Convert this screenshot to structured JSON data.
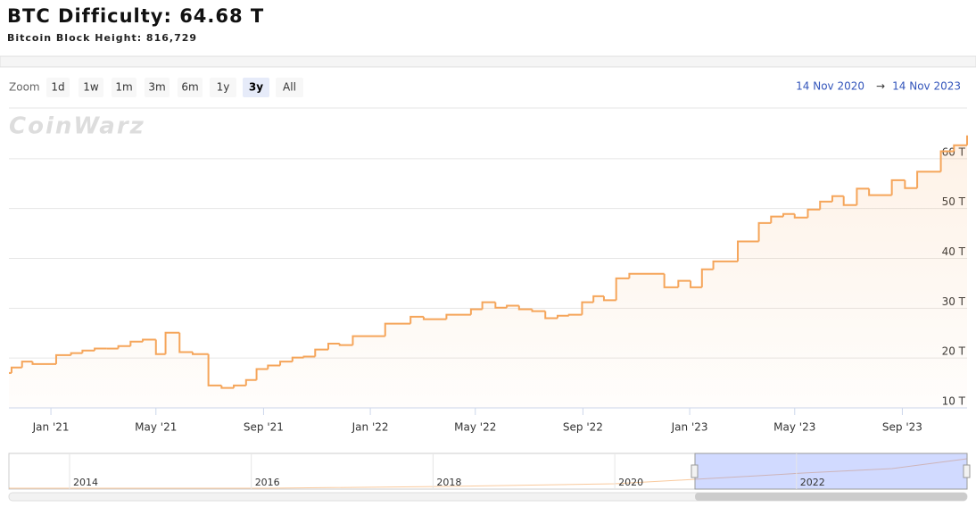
{
  "header": {
    "title": "BTC Difficulty: 64.68 T",
    "subtitle": "Bitcoin Block Height: 816,729"
  },
  "zoom": {
    "label": "Zoom",
    "buttons": [
      "1d",
      "1w",
      "1m",
      "3m",
      "6m",
      "1y",
      "3y",
      "All"
    ],
    "selected": 6
  },
  "range": {
    "from": "14 Nov 2020",
    "arrow": "→",
    "to": "14 Nov 2023"
  },
  "watermark": "CoinWarz",
  "navigator": {
    "labels": [
      "2014",
      "2016",
      "2018",
      "2020",
      "2022"
    ]
  },
  "chart_data": {
    "type": "line",
    "step": true,
    "color": "#f5a55a",
    "grid": true,
    "x": [
      "2020-11-14",
      "2020-11-17",
      "2020-11-29",
      "2020-12-11",
      "2021-01-07",
      "2021-01-24",
      "2021-02-06",
      "2021-02-20",
      "2021-03-06",
      "2021-03-19",
      "2021-04-02",
      "2021-04-16",
      "2021-05-01",
      "2021-05-12",
      "2021-05-28",
      "2021-06-12",
      "2021-06-30",
      "2021-07-15",
      "2021-07-29",
      "2021-08-12",
      "2021-08-24",
      "2021-09-06",
      "2021-09-20",
      "2021-10-04",
      "2021-10-17",
      "2021-10-30",
      "2021-11-14",
      "2021-11-27",
      "2021-12-12",
      "2022-01-18",
      "2022-02-16",
      "2022-03-03",
      "2022-03-29",
      "2022-04-26",
      "2022-05-09",
      "2022-05-24",
      "2022-06-06",
      "2022-06-20",
      "2022-07-05",
      "2022-07-20",
      "2022-08-03",
      "2022-08-16",
      "2022-08-31",
      "2022-09-13",
      "2022-09-25",
      "2022-10-09",
      "2022-10-24",
      "2022-12-03",
      "2022-12-19",
      "2023-01-02",
      "2023-01-15",
      "2023-01-28",
      "2023-02-25",
      "2023-03-21",
      "2023-04-04",
      "2023-04-18",
      "2023-05-01",
      "2023-05-16",
      "2023-05-30",
      "2023-06-13",
      "2023-06-26",
      "2023-07-11",
      "2023-07-25",
      "2023-08-20",
      "2023-09-04",
      "2023-09-18",
      "2023-10-15",
      "2023-10-30",
      "2023-11-14"
    ],
    "values": [
      17.0,
      18.1,
      19.3,
      18.8,
      20.6,
      21.0,
      21.5,
      21.9,
      21.9,
      22.4,
      23.3,
      23.7,
      20.8,
      25.1,
      21.2,
      20.8,
      14.5,
      14.0,
      14.5,
      15.6,
      17.8,
      18.5,
      19.3,
      20.1,
      20.3,
      21.7,
      22.9,
      22.6,
      24.4,
      26.9,
      28.3,
      27.8,
      28.7,
      29.8,
      31.2,
      30.1,
      30.5,
      29.8,
      29.4,
      28.0,
      28.5,
      28.7,
      31.2,
      32.4,
      31.6,
      36.0,
      36.9,
      34.2,
      35.5,
      34.2,
      37.8,
      39.4,
      43.4,
      47.1,
      48.4,
      48.9,
      48.2,
      49.8,
      51.4,
      52.5,
      50.7,
      54.0,
      52.7,
      55.7,
      54.1,
      57.4,
      61.5,
      62.7,
      64.68
    ],
    "xlim": [
      "2020-11-14",
      "2023-11-14"
    ],
    "xticks": [
      {
        "value": "2021-01-01",
        "label": "Jan '21"
      },
      {
        "value": "2021-05-01",
        "label": "May '21"
      },
      {
        "value": "2021-09-01",
        "label": "Sep '21"
      },
      {
        "value": "2022-01-01",
        "label": "Jan '22"
      },
      {
        "value": "2022-05-01",
        "label": "May '22"
      },
      {
        "value": "2022-09-01",
        "label": "Sep '22"
      },
      {
        "value": "2023-01-01",
        "label": "Jan '23"
      },
      {
        "value": "2023-05-01",
        "label": "May '23"
      },
      {
        "value": "2023-09-01",
        "label": "Sep '23"
      }
    ],
    "ylim": [
      10,
      70
    ],
    "yticks": [
      {
        "value": 10,
        "label": "10 T"
      },
      {
        "value": 20,
        "label": "20 T"
      },
      {
        "value": 30,
        "label": "30 T"
      },
      {
        "value": 40,
        "label": "40 T"
      },
      {
        "value": 50,
        "label": "50 T"
      },
      {
        "value": 60,
        "label": "60 T"
      }
    ]
  }
}
